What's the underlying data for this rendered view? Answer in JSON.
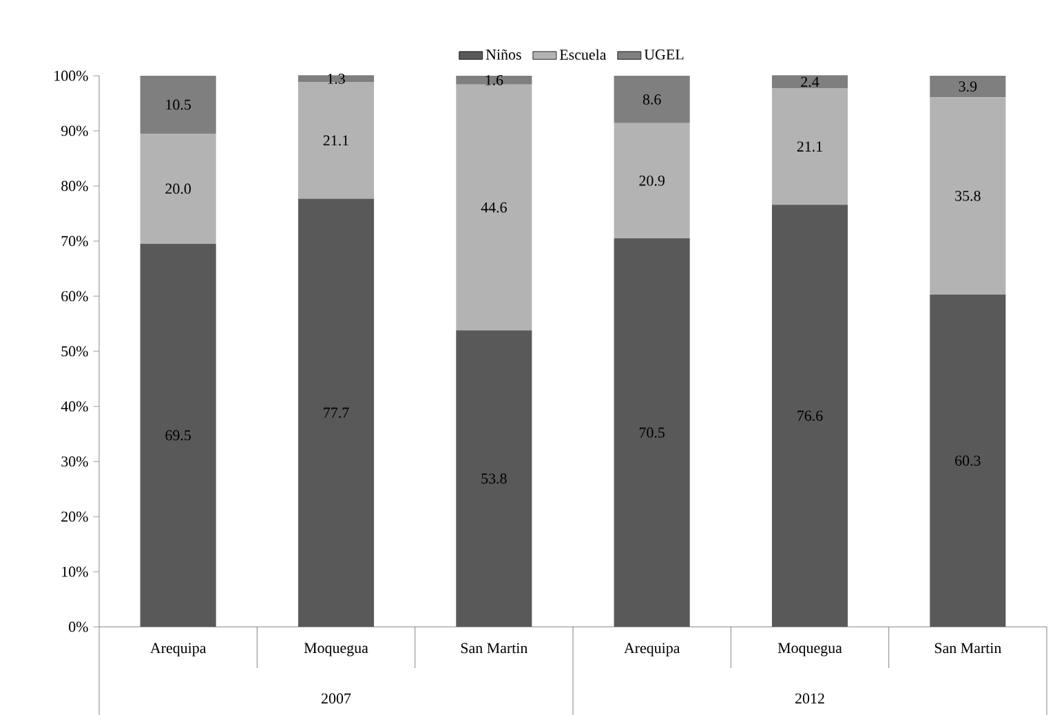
{
  "chart_data": {
    "type": "bar",
    "stacked": true,
    "legend": "top",
    "grid": false,
    "categories": [
      "Arequipa",
      "Moquegua",
      "San Martin",
      "Arequipa",
      "Moquegua",
      "San Martin"
    ],
    "annotations": [
      "2007",
      "2012"
    ],
    "series": [
      {
        "name": "Niños",
        "color": "#595959",
        "values": [
          69.5,
          77.7,
          53.8,
          70.5,
          76.6,
          60.3
        ],
        "value_labels": [
          "69.5",
          "77.7",
          "53.8",
          "70.5",
          "76.6",
          "60.3"
        ]
      },
      {
        "name": "Escuela",
        "color": "#b3b3b3",
        "values": [
          20.0,
          21.1,
          44.6,
          20.9,
          21.1,
          35.8
        ],
        "value_labels": [
          "20.0",
          "21.1",
          "44.6",
          "20.9",
          "21.1",
          "35.8"
        ]
      },
      {
        "name": "UGEL",
        "color": "#7f7f7f",
        "values": [
          10.5,
          1.3,
          1.6,
          8.6,
          2.4,
          3.9
        ],
        "value_labels": [
          "10.5",
          "1.3",
          "1.6",
          "8.6",
          "2.4",
          "3.9"
        ]
      }
    ],
    "ylim": [
      0,
      100
    ],
    "yticks": [
      {
        "value": 0,
        "label": "0%"
      },
      {
        "value": 10,
        "label": "10%"
      },
      {
        "value": 20,
        "label": "20%"
      },
      {
        "value": 30,
        "label": "30%"
      },
      {
        "value": 40,
        "label": "40%"
      },
      {
        "value": 50,
        "label": "50%"
      },
      {
        "value": 60,
        "label": "60%"
      },
      {
        "value": 70,
        "label": "70%"
      },
      {
        "value": 80,
        "label": "80%"
      },
      {
        "value": 90,
        "label": "90%"
      },
      {
        "value": 100,
        "label": "100%"
      }
    ]
  }
}
